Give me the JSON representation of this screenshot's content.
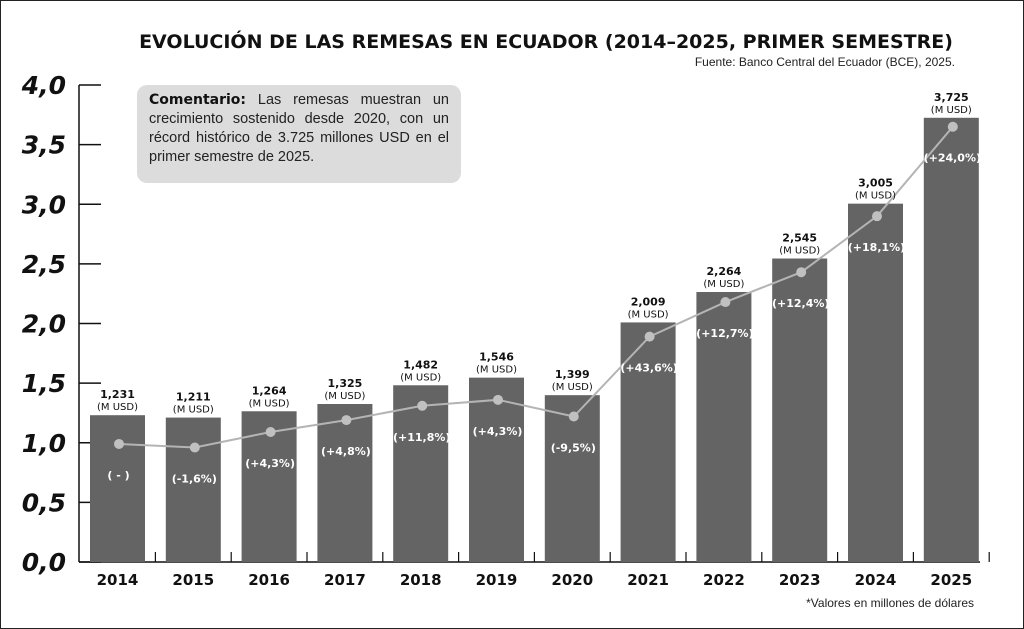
{
  "chart_data": {
    "type": "bar",
    "title": "EVOLUCIÓN DE LAS REMESAS EN ECUADOR (2014–2025, PRIMER SEMESTRE)",
    "source": "Fuente: Banco Central del Ecuador (BCE), 2025.",
    "footnote": "*Valores en millones de dólares",
    "comment_label": "Comentario:",
    "comment_text": "Las remesas muestran un crecimiento sostenido desde 2020, con un récord histórico de 3.725 millones USD en el primer semestre de 2025.",
    "xlabel": "",
    "ylabel": "",
    "ylim": [
      0,
      4.0
    ],
    "yticks": [
      "0,0",
      "0,5",
      "1,0",
      "1,5",
      "2,0",
      "2,5",
      "3,0",
      "3,5",
      "4,0"
    ],
    "ytick_values": [
      0,
      0.5,
      1.0,
      1.5,
      2.0,
      2.5,
      3.0,
      3.5,
      4.0
    ],
    "categories": [
      "2014",
      "2015",
      "2016",
      "2017",
      "2018",
      "2019",
      "2020",
      "2021",
      "2022",
      "2023",
      "2024",
      "2025"
    ],
    "values": [
      1.231,
      1.211,
      1.264,
      1.325,
      1.482,
      1.546,
      1.399,
      2.009,
      2.264,
      2.545,
      3.005,
      3.725
    ],
    "value_labels": [
      "1,231",
      "1,211",
      "1,264",
      "1,325",
      "1,482",
      "1,546",
      "1,399",
      "2,009",
      "2,264",
      "2,545",
      "3,005",
      "3,725"
    ],
    "unit_label": "(M USD)",
    "growth_labels": [
      "( - )",
      "(-1,6%)",
      "(+4,3%)",
      "(+4,8%)",
      "(+11,8%)",
      "(+4,3%)",
      "(-9,5%)",
      "(+43,6%)",
      "(+12,7%)",
      "(+12,4%)",
      "(+18,1%)",
      "(+24,0%)"
    ],
    "trend_line": {
      "name": "tendencia",
      "values": [
        0.99,
        0.96,
        1.09,
        1.19,
        1.31,
        1.36,
        1.22,
        1.89,
        2.18,
        2.43,
        2.9,
        3.65
      ]
    },
    "grid": false,
    "legend": "none",
    "colors": {
      "bar": "#646464",
      "line": "#b4b4b4",
      "dot": "#c0c0c0",
      "comment_bg": "#dcdcdc"
    }
  }
}
